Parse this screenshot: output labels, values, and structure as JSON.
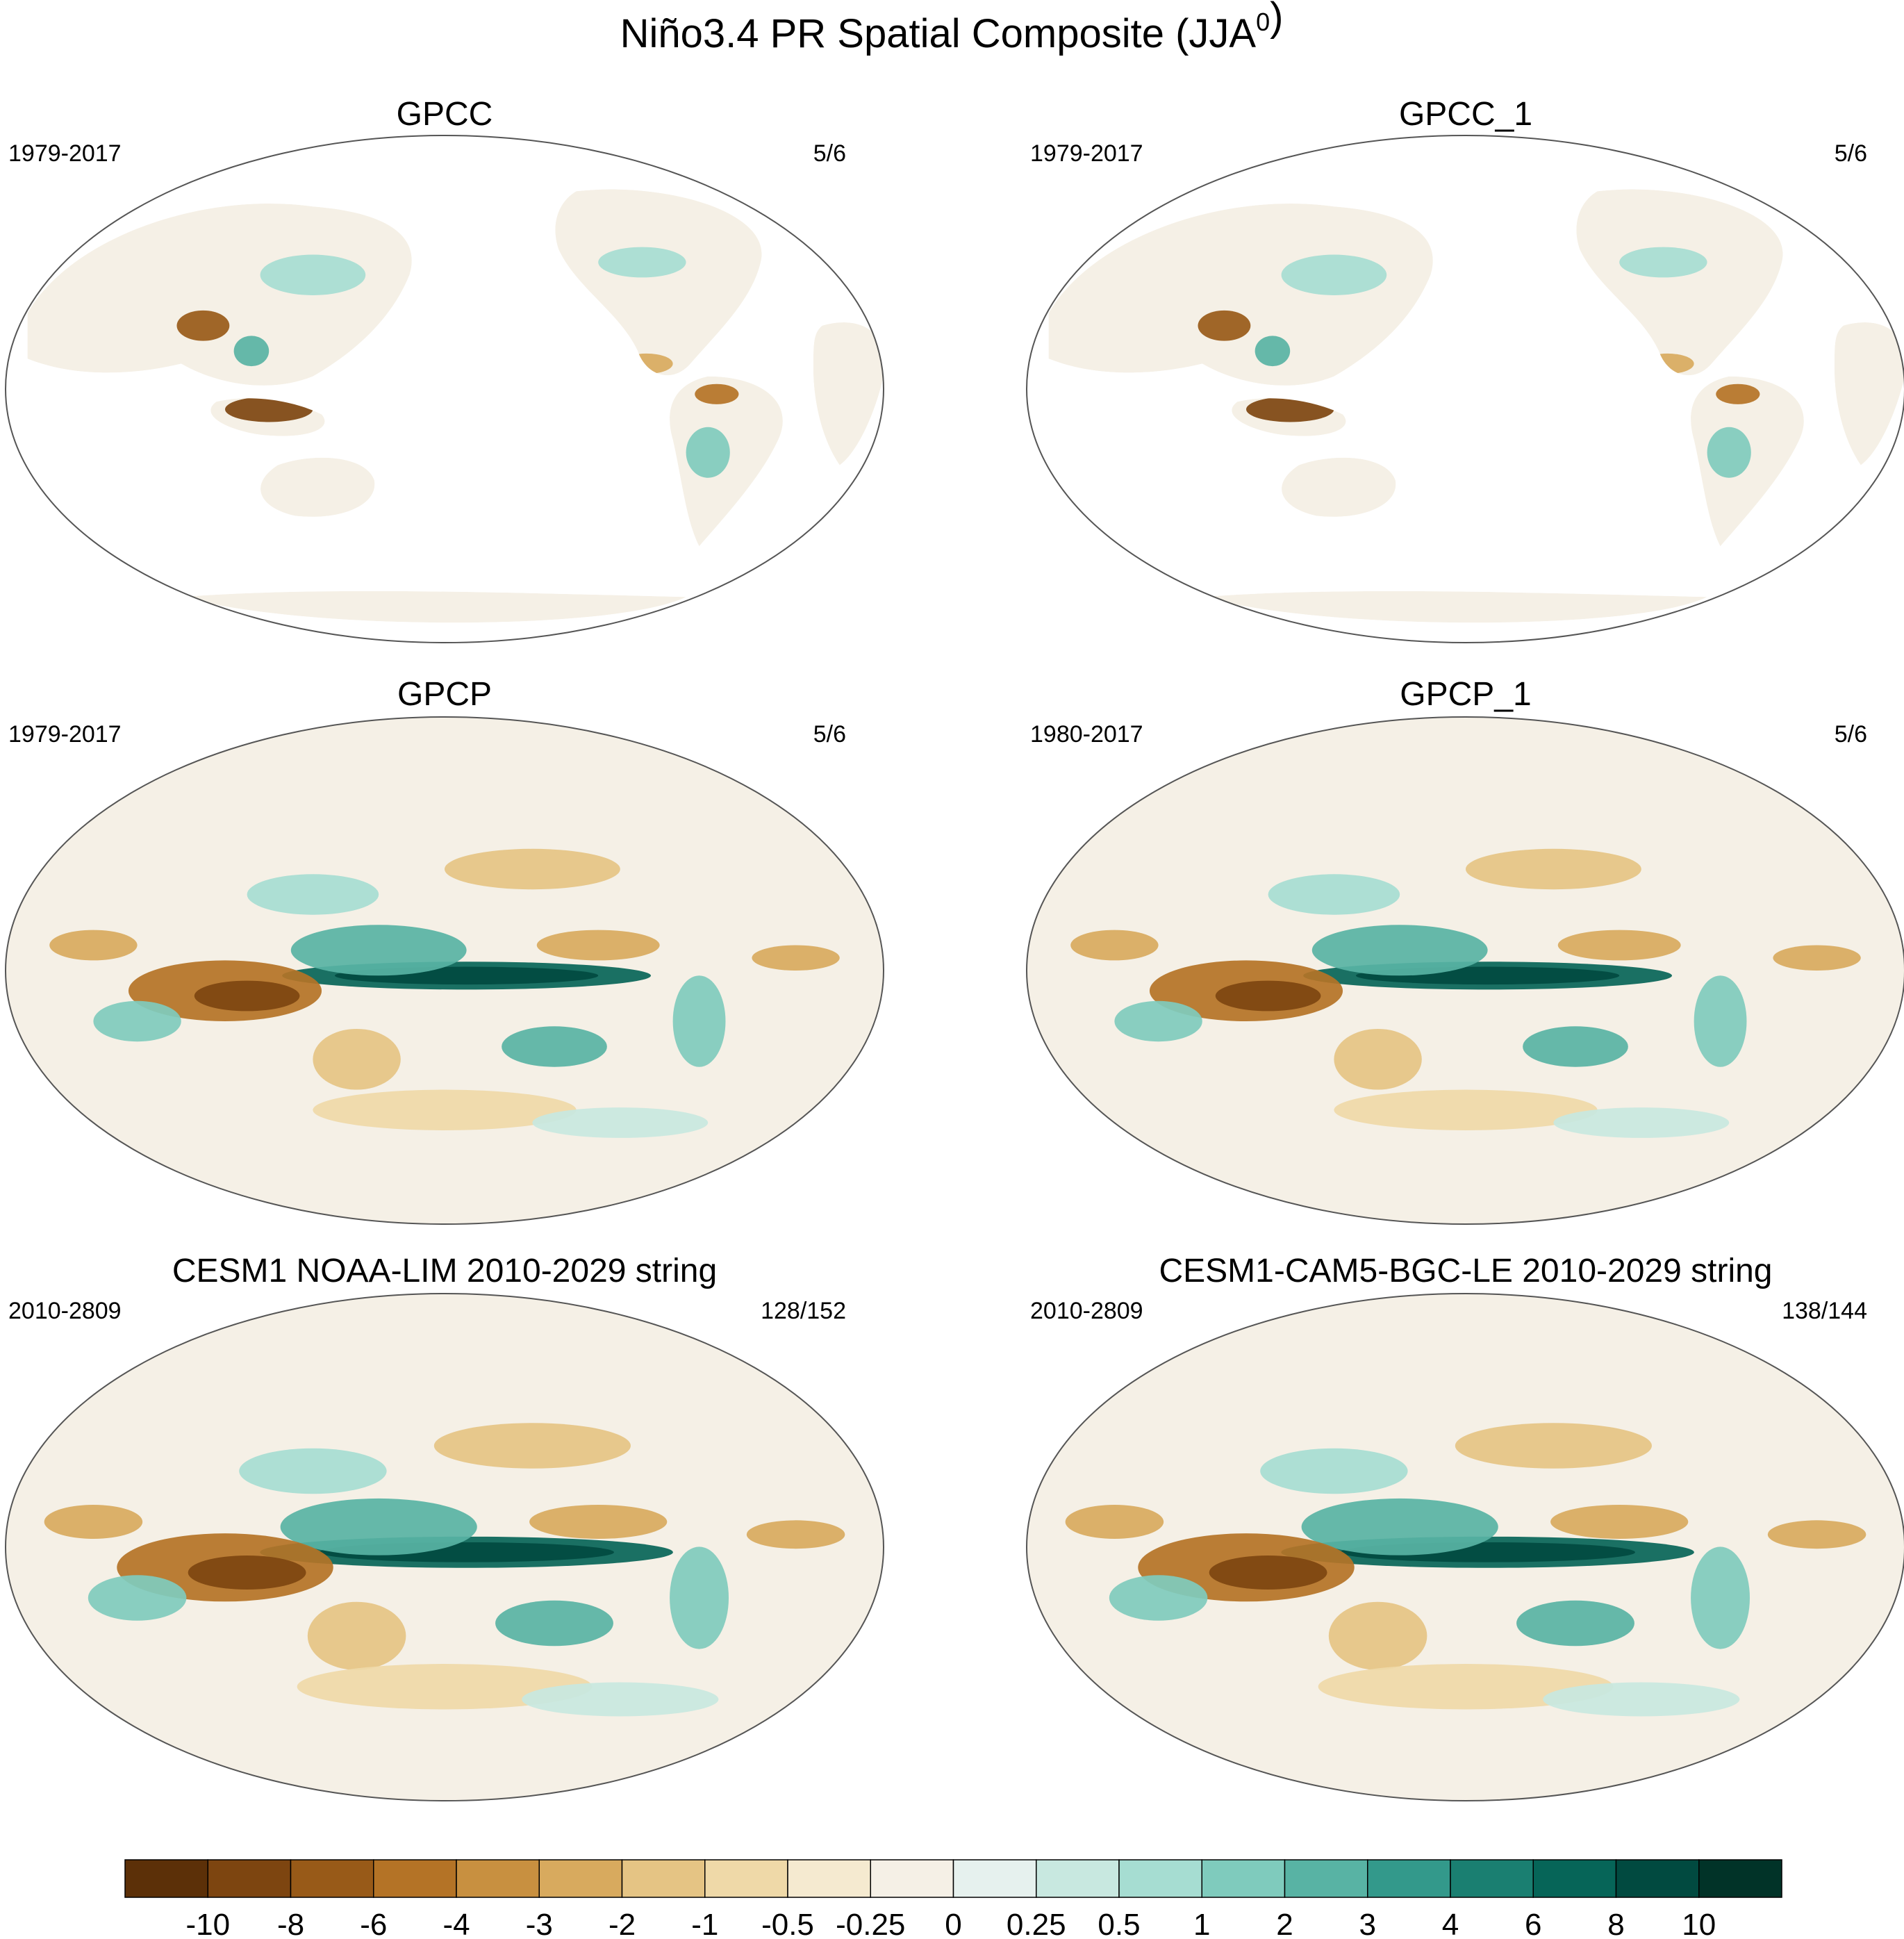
{
  "chart_data": {
    "type": "heatmap",
    "title": "Niño3.4 PR Spatial Composite (JJA",
    "title_superscript": "0",
    "title_close": ")",
    "panels": [
      {
        "title": "GPCC",
        "years": "1979-2017",
        "count": "5/6",
        "coverage": "land"
      },
      {
        "title": "GPCC_1",
        "years": "1979-2017",
        "count": "5/6",
        "coverage": "land"
      },
      {
        "title": "GPCP",
        "years": "1979-2017",
        "count": "5/6",
        "coverage": "global"
      },
      {
        "title": "GPCP_1",
        "years": "1980-2017",
        "count": "5/6",
        "coverage": "global"
      },
      {
        "title": "CESM1 NOAA-LIM 2010-2029 string",
        "years": "2010-2809",
        "count": "128/152",
        "coverage": "global"
      },
      {
        "title": "CESM1-CAM5-BGC-LE 2010-2029 string",
        "years": "2010-2809",
        "count": "138/144",
        "coverage": "global"
      }
    ],
    "colorbar": {
      "levels": [
        "-10",
        "-8",
        "-6",
        "-4",
        "-3",
        "-2",
        "-1",
        "-0.5",
        "-0.25",
        "0",
        "0.25",
        "0.5",
        "1",
        "2",
        "3",
        "4",
        "6",
        "8",
        "10"
      ],
      "colors": [
        "#5c3008",
        "#7d4510",
        "#985a18",
        "#b47326",
        "#c89040",
        "#d8aa5e",
        "#e5c484",
        "#efd9a8",
        "#f5ead0",
        "#f5f0e6",
        "#e6f1ee",
        "#c8e8e0",
        "#a6ddd2",
        "#7fcbbd",
        "#58b3a4",
        "#33998b",
        "#1a7f71",
        "#066558",
        "#014a40",
        "#013328"
      ]
    },
    "features": {
      "warm_pool_dry": "#a7651c",
      "pacific_wet": "#0b6e61",
      "land_outline": "#7a7a7a"
    }
  }
}
